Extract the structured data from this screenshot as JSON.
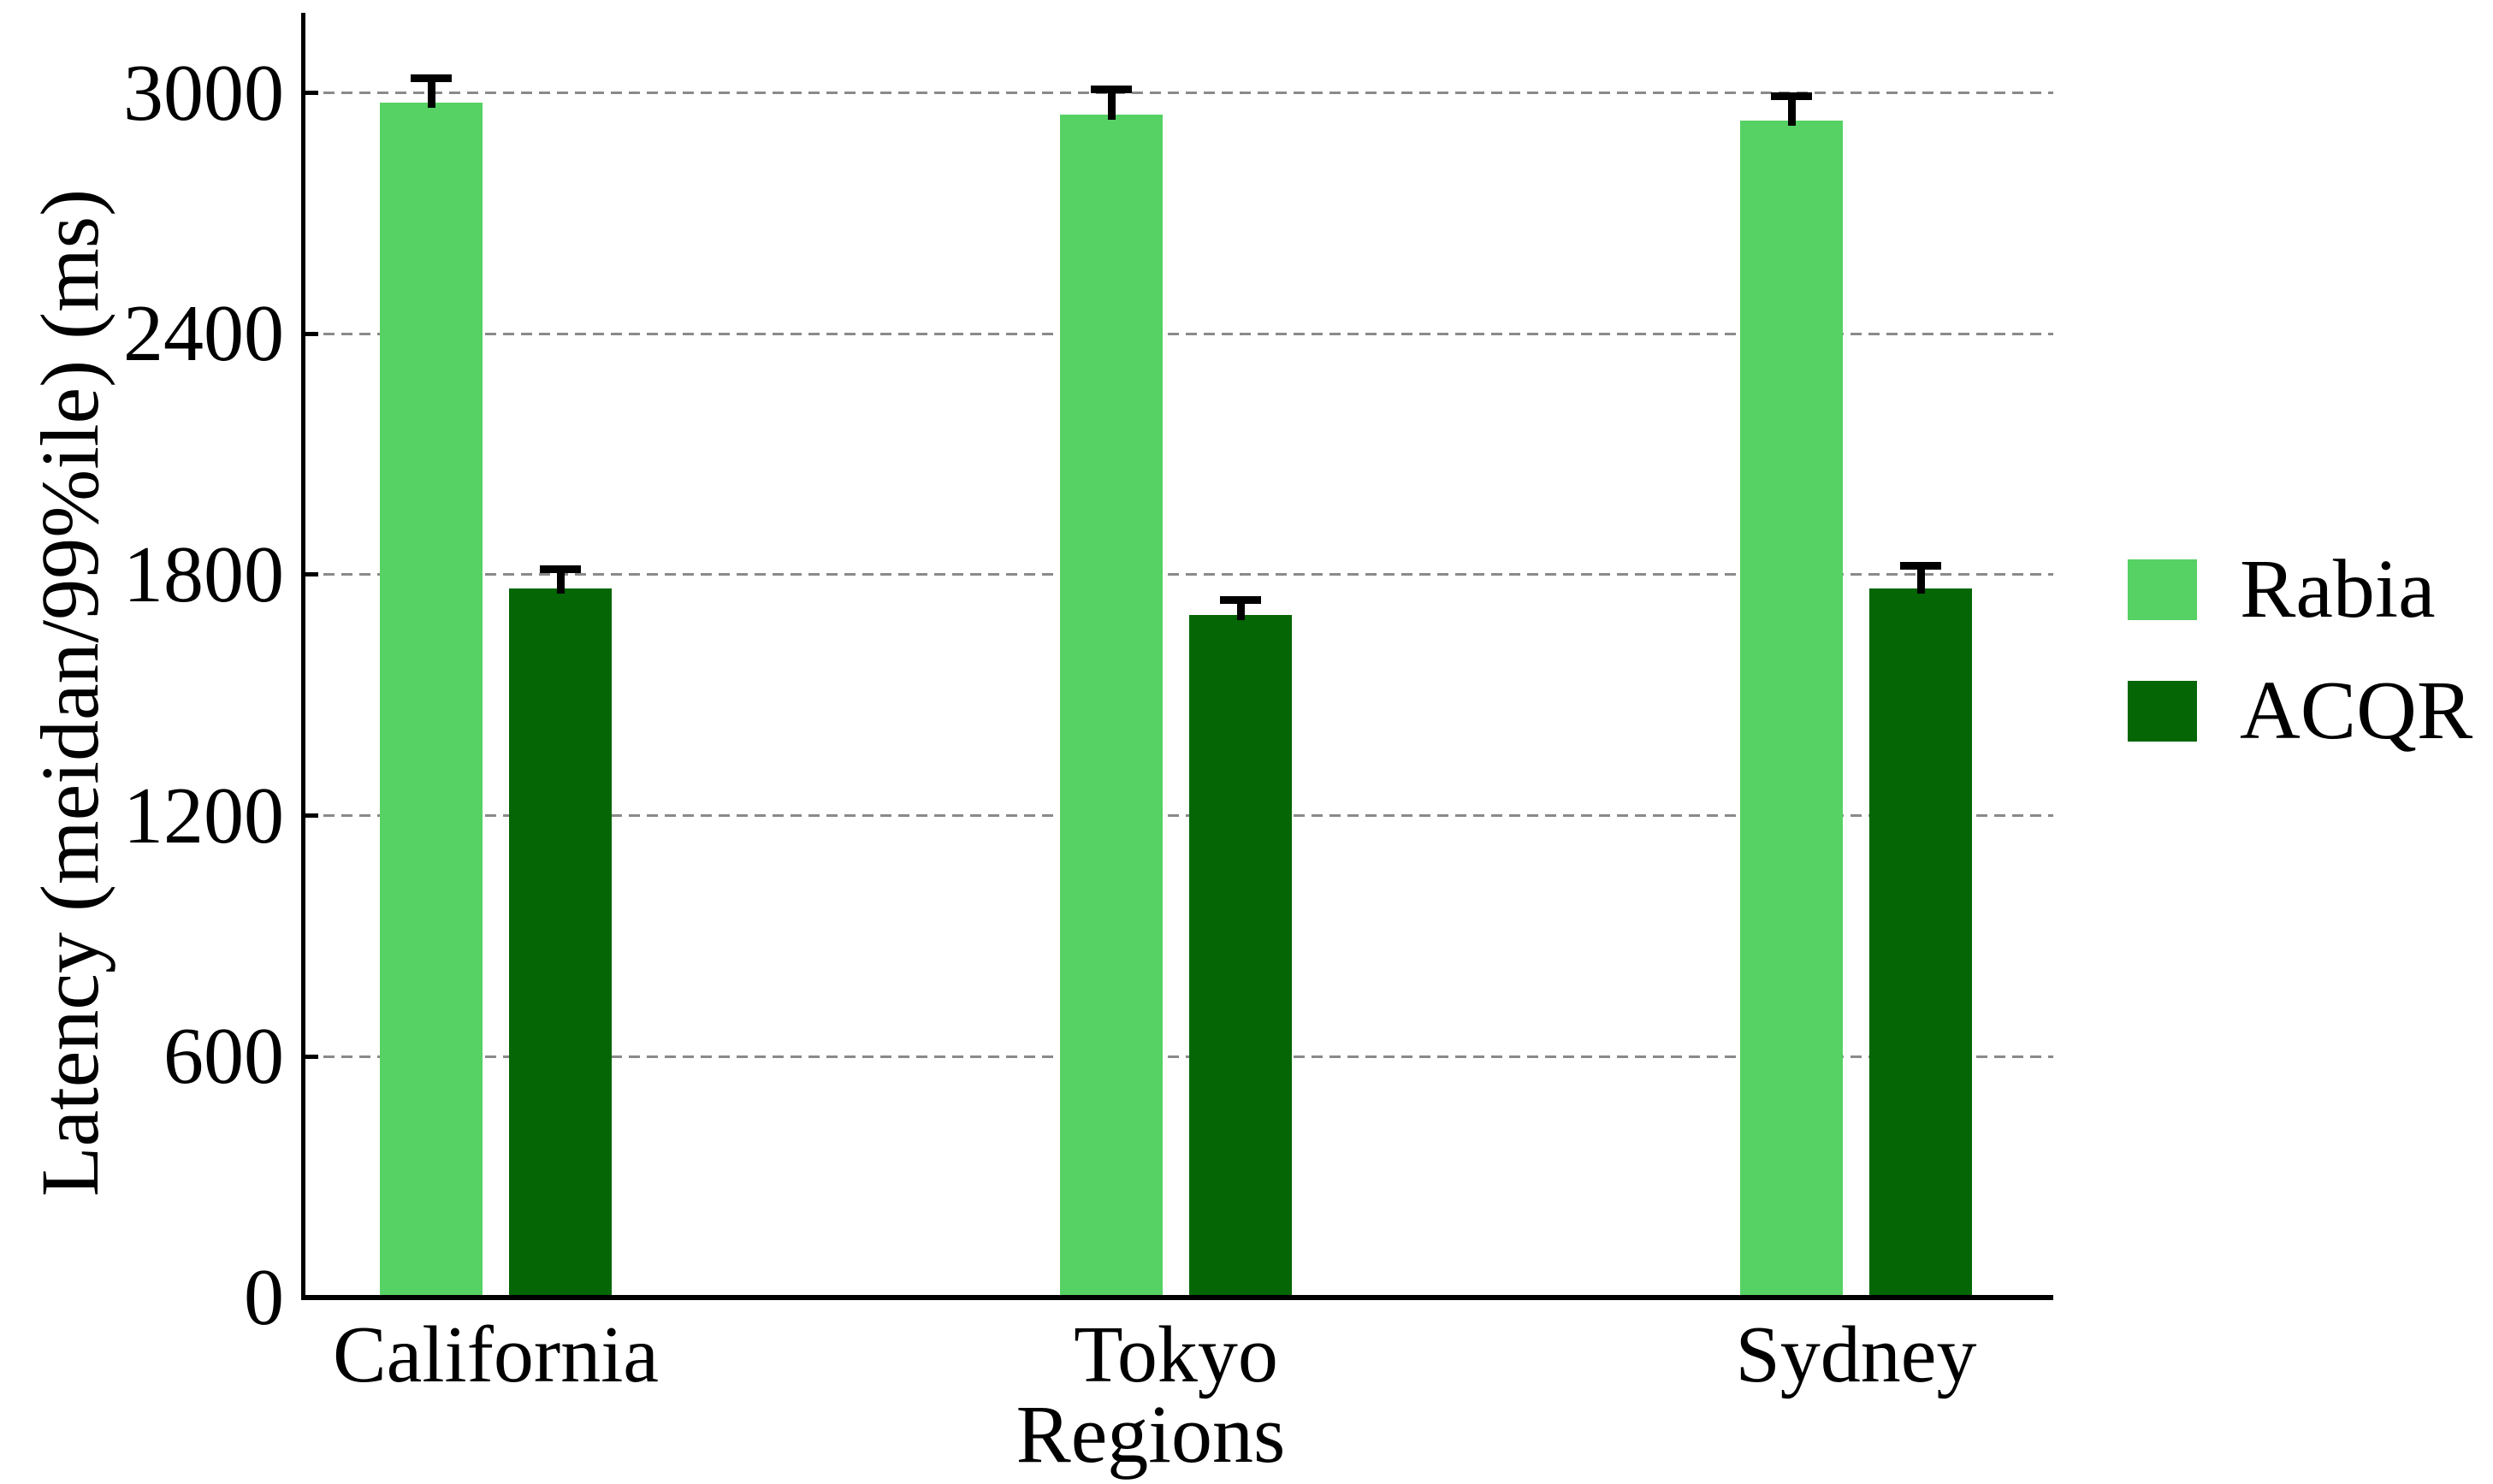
{
  "chart_data": {
    "type": "bar",
    "title": "",
    "xlabel": "Regions",
    "ylabel": "Latency (meidan/99%ile) (ms)",
    "categories": [
      "California",
      "Tokyo",
      "Sydney"
    ],
    "series": [
      {
        "name": "Rabia",
        "color": "#56D164",
        "values": [
          2975,
          2945,
          2930
        ],
        "upper_errors": [
          62,
          64,
          62
        ]
      },
      {
        "name": "ACQR",
        "color": "#046604",
        "values": [
          1765,
          1700,
          1765
        ],
        "upper_errors": [
          49,
          36,
          58
        ]
      }
    ],
    "yticks": [
      0,
      600,
      1200,
      1800,
      2400,
      3000
    ],
    "ylim": [
      0,
      3200
    ],
    "grid": "horizontal-dashed",
    "grid_color": "#8a8a8a",
    "error_bar_color": "#000000",
    "legend_position": "right-outside",
    "legend_frame": false
  }
}
